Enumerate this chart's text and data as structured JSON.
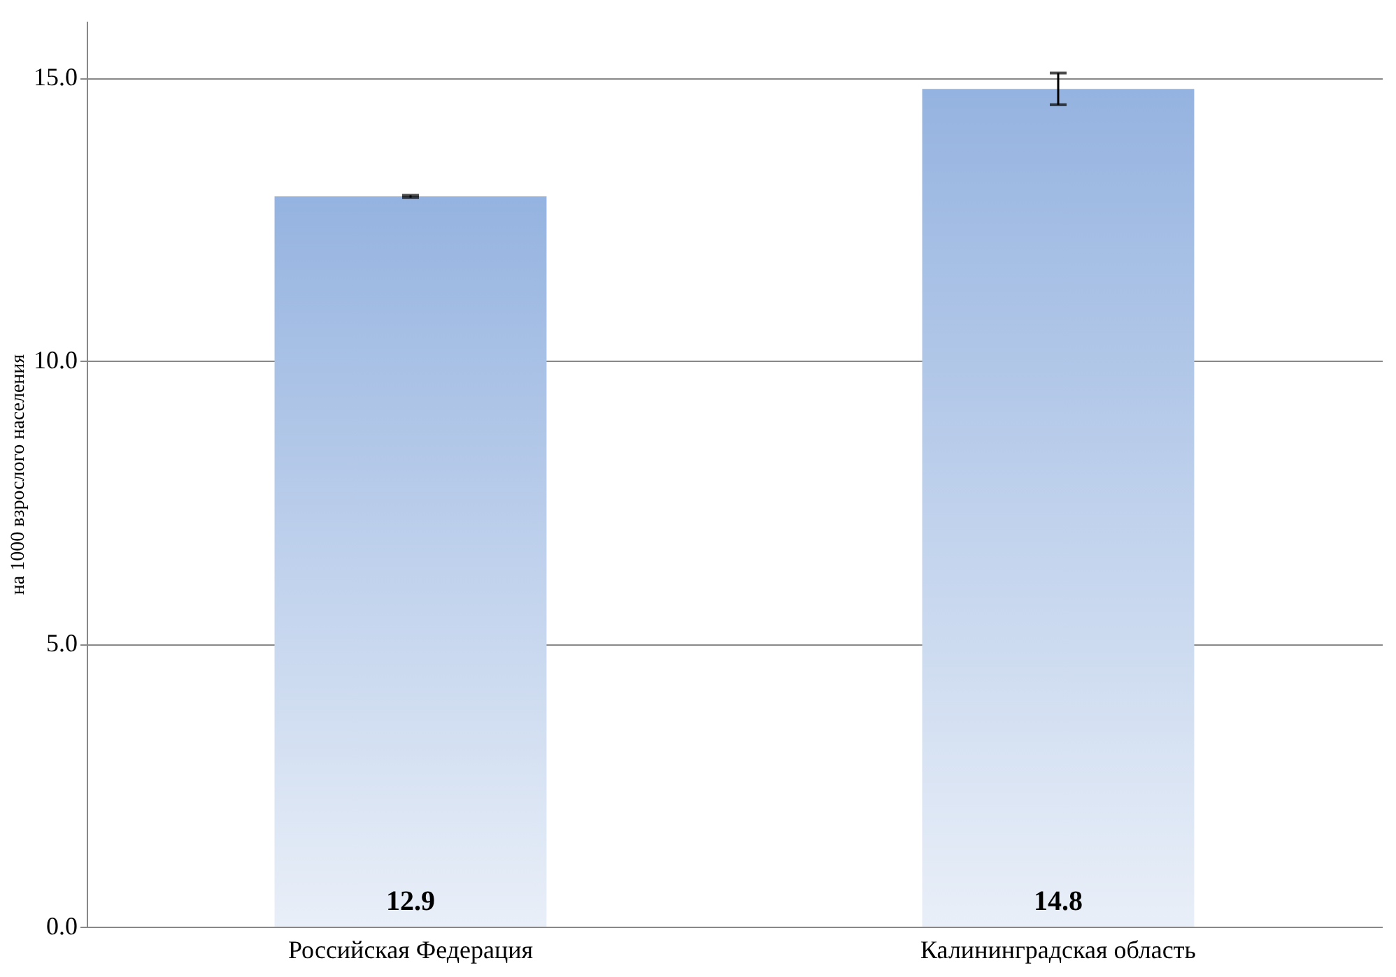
{
  "chart_data": {
    "type": "bar",
    "ylabel": "на 1000 взрослого населения",
    "categories": [
      "Российская Федерация",
      "Калининградская область"
    ],
    "values": [
      12.9,
      14.8
    ],
    "errors": [
      0.02,
      0.28
    ],
    "color": "#95b3e0",
    "ylim": [
      0,
      16
    ],
    "yticks": [
      {
        "value": 0,
        "label": "0.0"
      },
      {
        "value": 5,
        "label": "5.0"
      },
      {
        "value": 10,
        "label": "10.0"
      },
      {
        "value": 15,
        "label": "15.0"
      }
    ],
    "grid": "y",
    "data_labels": true
  }
}
